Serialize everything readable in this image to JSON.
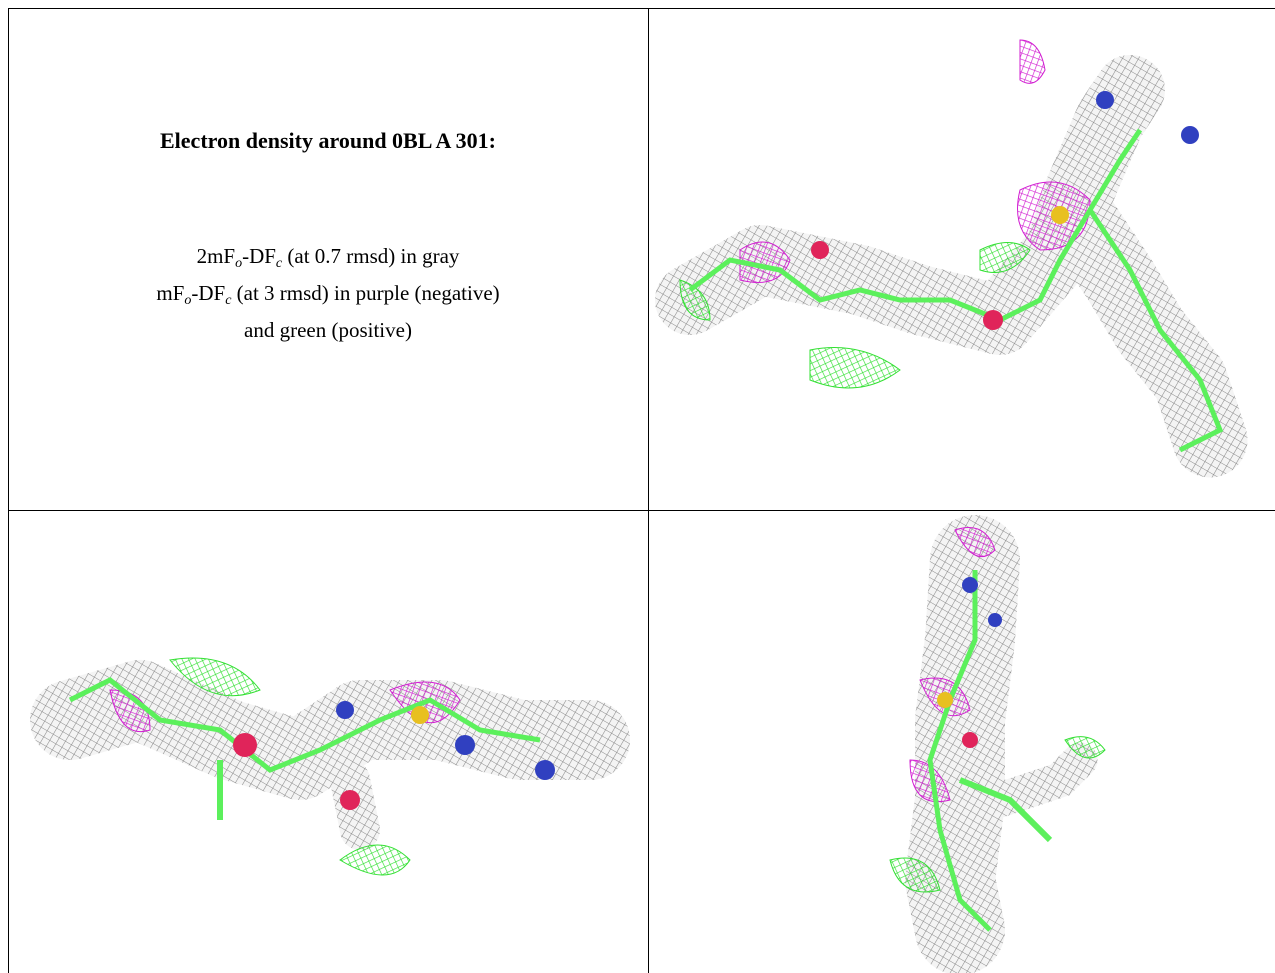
{
  "header": {
    "title": "Electron density around 0BL A 301:"
  },
  "legend": {
    "lines": [
      [
        "2mF",
        "o",
        "-DF",
        "c",
        " (at 0.7 rmsd) in gray"
      ],
      [
        "mF",
        "o",
        "-DF",
        "c",
        " (at 3 rmsd) in purple (negative)"
      ],
      [
        "and green (positive)"
      ]
    ]
  }
}
